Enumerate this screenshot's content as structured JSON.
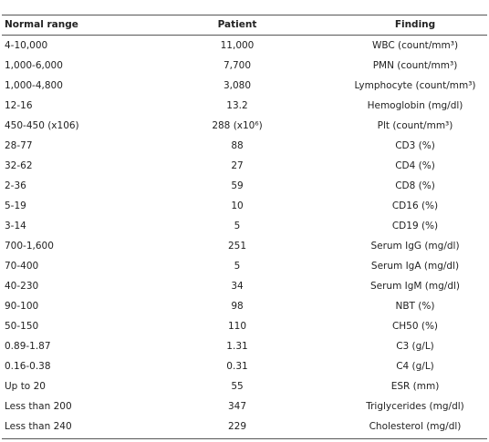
{
  "table": {
    "header": [
      "Normal range",
      "Patient",
      "Finding"
    ],
    "rows": [
      [
        "4-10,000",
        "11,000",
        "WBC (count/mm³)"
      ],
      [
        "1,000-6,000",
        "7,700",
        "PMN (count/mm³)"
      ],
      [
        "1,000-4,800",
        "3,080",
        "Lymphocyte (count/mm³)"
      ],
      [
        "12-16",
        "13.2",
        "Hemoglobin (mg/dl)"
      ],
      [
        "450-450 (x106)",
        "288 (x10⁶)",
        "Plt (count/mm³)"
      ],
      [
        "28-77",
        "88",
        "CD3 (%)"
      ],
      [
        "32-62",
        "27",
        "CD4 (%)"
      ],
      [
        "2-36",
        "59",
        "CD8 (%)"
      ],
      [
        "5-19",
        "10",
        "CD16 (%)"
      ],
      [
        "3-14",
        "5",
        "CD19 (%)"
      ],
      [
        "700-1,600",
        "251",
        "Serum IgG (mg/dl)"
      ],
      [
        "70-400",
        "5",
        "Serum IgA (mg/dl)"
      ],
      [
        "40-230",
        "34",
        "Serum IgM (mg/dl)"
      ],
      [
        "90-100",
        "98",
        "NBT (%)"
      ],
      [
        "50-150",
        "110",
        "CH50 (%)"
      ],
      [
        "0.89-1.87",
        "1.31",
        "C3 (g/L)"
      ],
      [
        "0.16-0.38",
        "0.31",
        "C4 (g/L)"
      ],
      [
        "Up to 20",
        "55",
        "ESR (mm)"
      ],
      [
        "Less than 200",
        "347",
        "Triglycerides (mg/dl)"
      ],
      [
        "Less than 240",
        "229",
        "Cholesterol (mg/dl)"
      ]
    ]
  }
}
